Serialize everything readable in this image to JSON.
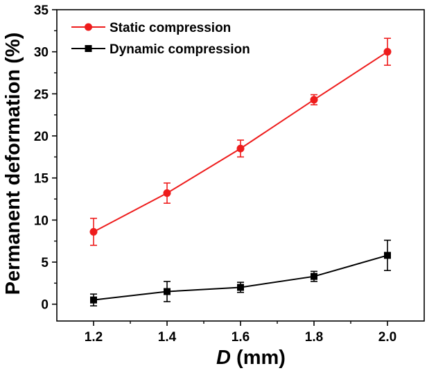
{
  "chart_data": {
    "type": "line",
    "xlabel_var": "D",
    "xlabel_unit": " (mm)",
    "ylabel": "Permanent deformation (%)",
    "xlim": [
      1.1,
      2.1
    ],
    "ylim": [
      -2,
      35
    ],
    "x_ticks": [
      "1.2",
      "1.4",
      "1.6",
      "1.8",
      "2.0"
    ],
    "y_ticks": [
      "0",
      "5",
      "10",
      "15",
      "20",
      "25",
      "30",
      "35"
    ],
    "x": [
      1.2,
      1.4,
      1.6,
      1.8,
      2.0
    ],
    "series": [
      {
        "name": "Static compression",
        "color": "#ee1c1c",
        "marker": "circle",
        "values": [
          8.6,
          13.2,
          18.5,
          24.3,
          30.0
        ],
        "errors": [
          1.6,
          1.2,
          1.0,
          0.6,
          1.6
        ]
      },
      {
        "name": "Dynamic compression",
        "color": "#000000",
        "marker": "square",
        "values": [
          0.5,
          1.5,
          2.0,
          3.3,
          5.8
        ],
        "errors": [
          0.7,
          1.2,
          0.6,
          0.6,
          1.8
        ]
      }
    ],
    "legend_position": "top-left",
    "grid": false
  }
}
